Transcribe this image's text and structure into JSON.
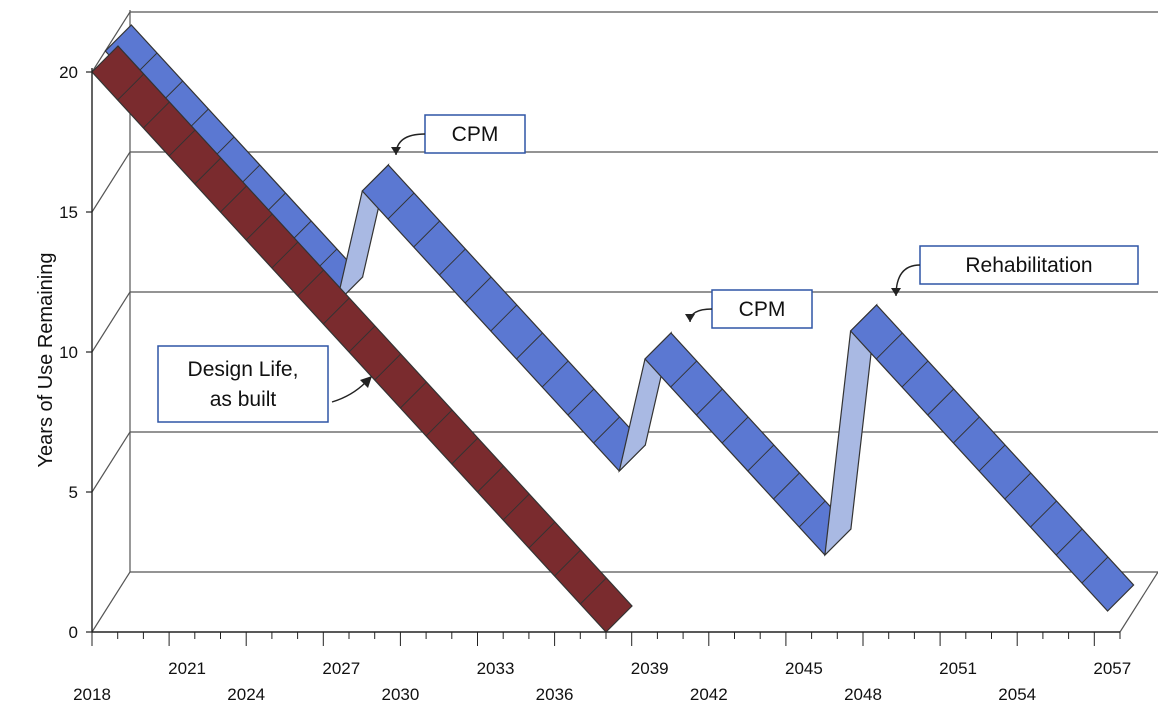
{
  "chart_data": {
    "type": "line",
    "style": "3d-ribbon",
    "title": "",
    "xlabel": "",
    "ylabel": "Years of Use Remaining",
    "xlim": [
      2018,
      2058
    ],
    "ylim": [
      0,
      20
    ],
    "grid": true,
    "legend": "none",
    "x_ticks_back": [
      "2021",
      "2027",
      "2033",
      "2039",
      "2045",
      "2051",
      "2057"
    ],
    "x_ticks_front": [
      "2018",
      "2024",
      "2030",
      "2036",
      "2042",
      "2048",
      "2054"
    ],
    "y_ticks": [
      "0",
      "5",
      "10",
      "15",
      "20"
    ],
    "series": [
      {
        "color": "#7a2b2e",
        "points": [
          [
            2018,
            20
          ],
          [
            2038,
            0
          ]
        ]
      },
      {
        "color": "#5b78d2",
        "points": [
          [
            2018,
            20
          ],
          [
            2027,
            11
          ],
          [
            2028,
            15
          ],
          [
            2038,
            5
          ],
          [
            2039,
            9
          ],
          [
            2046,
            2
          ],
          [
            2047,
            10
          ],
          [
            2057,
            0
          ]
        ]
      }
    ],
    "annotations": [
      {
        "text": "CPM"
      },
      {
        "text": "CPM"
      },
      {
        "text": "Rehabilitation"
      },
      {
        "text": "Design Life,\nas built"
      }
    ],
    "colors": {
      "front_series": "#7a2b2e",
      "back_series": "#5b78d2",
      "back_series_side": "#a9b9e3",
      "grid": "#555555"
    }
  }
}
